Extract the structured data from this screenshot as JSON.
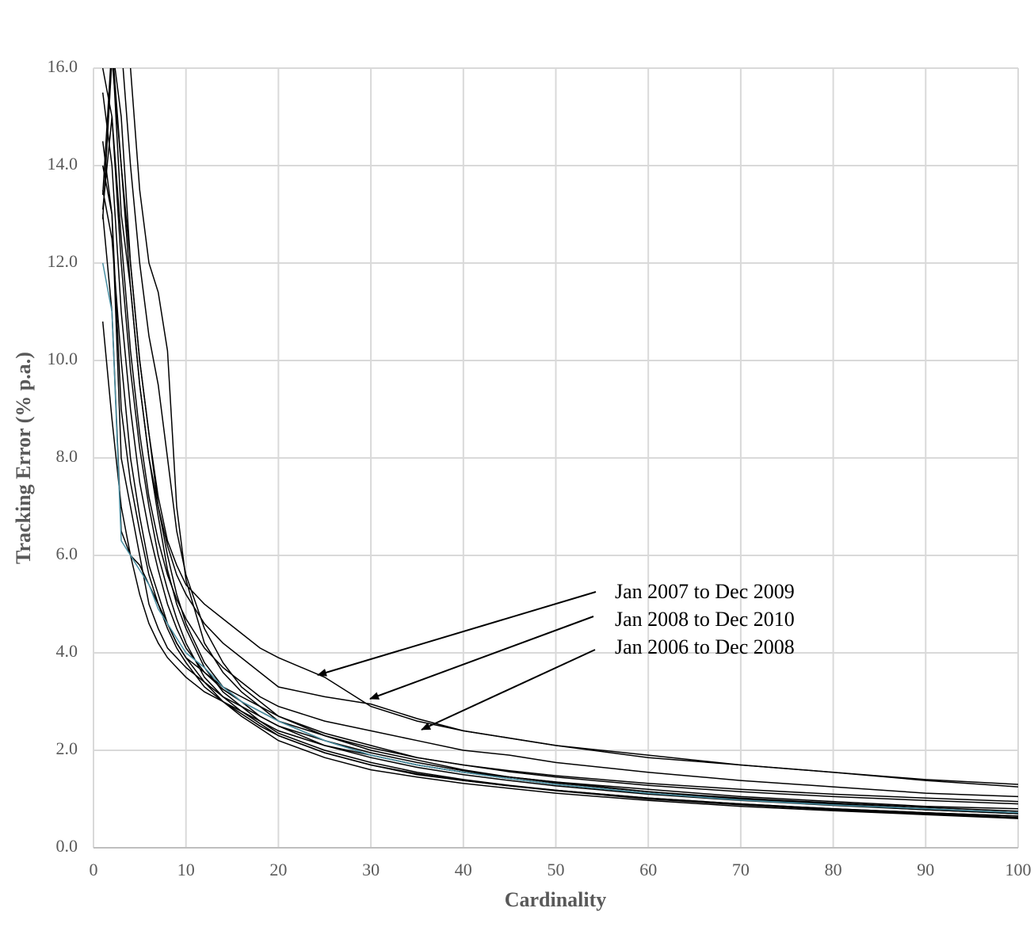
{
  "chart_data": {
    "type": "line",
    "x_label": "Cardinality",
    "y_label": "Tracking Error (% p.a.)",
    "x": [
      1,
      2,
      3,
      4,
      5,
      6,
      7,
      8,
      9,
      10,
      12,
      14,
      16,
      18,
      20,
      25,
      30,
      35,
      40,
      45,
      50,
      60,
      70,
      80,
      90,
      100
    ],
    "color": "#000000",
    "series": [
      {
        "values": [
          13.4,
          16.5,
          15.0,
          12.0,
          10.0,
          8.5,
          7.2,
          6.3,
          5.8,
          5.4,
          5.0,
          4.7,
          4.4,
          4.1,
          3.9,
          3.5,
          2.9,
          2.6,
          2.4,
          2.25,
          2.1,
          1.9,
          1.7,
          1.55,
          1.4,
          1.3
        ]
      },
      {
        "values": [
          12.9,
          16.2,
          14.0,
          11.5,
          9.5,
          8.0,
          7.0,
          6.2,
          5.6,
          5.2,
          4.6,
          4.2,
          3.9,
          3.6,
          3.3,
          3.1,
          2.95,
          2.65,
          2.4,
          2.25,
          2.1,
          1.85,
          1.7,
          1.55,
          1.38,
          1.25
        ]
      },
      {
        "values": [
          13.1,
          15.0,
          12.5,
          10.2,
          8.5,
          7.2,
          6.3,
          5.6,
          5.1,
          4.7,
          4.1,
          3.7,
          3.4,
          3.1,
          2.9,
          2.6,
          2.4,
          2.2,
          2.0,
          1.9,
          1.75,
          1.55,
          1.38,
          1.25,
          1.12,
          1.05
        ]
      },
      {
        "values": [
          10.8,
          8.8,
          7.0,
          6.0,
          5.2,
          4.6,
          4.2,
          3.9,
          3.7,
          3.5,
          3.2,
          3.0,
          2.8,
          2.6,
          2.4,
          2.1,
          1.9,
          1.7,
          1.55,
          1.45,
          1.35,
          1.2,
          1.05,
          0.95,
          0.85,
          0.8
        ]
      },
      {
        "values": [
          13.0,
          11.0,
          6.5,
          6.0,
          5.8,
          5.4,
          5.0,
          4.6,
          4.2,
          3.9,
          3.6,
          3.3,
          3.1,
          2.9,
          2.7,
          2.3,
          2.0,
          1.8,
          1.6,
          1.45,
          1.35,
          1.15,
          1.0,
          0.9,
          0.8,
          0.72
        ]
      },
      {
        "values": [
          14.0,
          13.0,
          8.0,
          7.0,
          6.0,
          5.0,
          4.5,
          4.1,
          3.9,
          3.7,
          3.4,
          3.1,
          2.9,
          2.7,
          2.5,
          2.2,
          1.9,
          1.7,
          1.55,
          1.42,
          1.3,
          1.12,
          0.98,
          0.88,
          0.78,
          0.7
        ]
      },
      {
        "values": [
          16.5,
          16.5,
          14.0,
          12.0,
          10.0,
          8.5,
          7.0,
          6.0,
          5.2,
          4.6,
          3.8,
          3.3,
          3.0,
          2.7,
          2.5,
          2.1,
          1.85,
          1.65,
          1.5,
          1.38,
          1.27,
          1.1,
          0.97,
          0.87,
          0.78,
          0.7
        ]
      },
      {
        "values": [
          17,
          17,
          17,
          16,
          13.5,
          12,
          11.4,
          10.2,
          7.0,
          5.5,
          4.2,
          3.6,
          3.2,
          2.9,
          2.6,
          2.2,
          1.95,
          1.75,
          1.58,
          1.45,
          1.33,
          1.15,
          1.02,
          0.92,
          0.83,
          0.75
        ]
      },
      {
        "values": [
          16.8,
          16.5,
          13.0,
          11.5,
          9.5,
          8.0,
          6.8,
          5.7,
          5.0,
          4.5,
          3.7,
          3.2,
          2.9,
          2.6,
          2.35,
          2.0,
          1.75,
          1.55,
          1.4,
          1.28,
          1.18,
          1.02,
          0.9,
          0.8,
          0.72,
          0.65
        ]
      },
      {
        "values": [
          16,
          15,
          12,
          9.8,
          8.2,
          7.0,
          6.0,
          5.3,
          4.7,
          4.2,
          3.5,
          3.1,
          2.8,
          2.55,
          2.3,
          1.95,
          1.7,
          1.5,
          1.38,
          1.27,
          1.17,
          1.0,
          0.88,
          0.78,
          0.7,
          0.62
        ]
      },
      {
        "values": [
          17,
          17,
          16.5,
          14,
          12,
          10.5,
          9.5,
          8.0,
          6.5,
          5.6,
          4.5,
          3.8,
          3.3,
          3.0,
          2.7,
          2.35,
          2.1,
          1.85,
          1.7,
          1.56,
          1.45,
          1.28,
          1.15,
          1.05,
          0.97,
          0.9
        ]
      },
      {
        "values": [
          14.5,
          13,
          9,
          7.5,
          6.5,
          5.6,
          5.0,
          4.5,
          4.1,
          3.8,
          3.3,
          3.0,
          2.75,
          2.5,
          2.3,
          1.95,
          1.7,
          1.52,
          1.38,
          1.27,
          1.18,
          1.02,
          0.9,
          0.8,
          0.72,
          0.65
        ]
      },
      {
        "values": [
          13.5,
          12.5,
          10,
          8,
          6.8,
          5.8,
          5.2,
          4.6,
          4.2,
          3.9,
          3.4,
          3.0,
          2.7,
          2.45,
          2.2,
          1.85,
          1.6,
          1.45,
          1.32,
          1.22,
          1.12,
          0.97,
          0.85,
          0.76,
          0.68,
          0.6
        ]
      },
      {
        "values": [
          15.5,
          14,
          11,
          9,
          7.5,
          6.5,
          5.7,
          5.0,
          4.5,
          4.1,
          3.6,
          3.25,
          3.0,
          2.8,
          2.6,
          2.3,
          2.05,
          1.85,
          1.7,
          1.58,
          1.48,
          1.32,
          1.2,
          1.1,
          1.02,
          0.95
        ]
      },
      {
        "color": "#4a90a4",
        "values": [
          12.0,
          11.0,
          6.3,
          6.0,
          5.7,
          5.4,
          4.9,
          4.6,
          4.3,
          4.0,
          3.7,
          3.3,
          3.0,
          2.8,
          2.6,
          2.2,
          1.9,
          1.7,
          1.55,
          1.42,
          1.3,
          1.12,
          0.98,
          0.88,
          0.8,
          0.72
        ]
      }
    ],
    "xlim": [
      0,
      100
    ],
    "xticks": [
      0,
      10,
      20,
      30,
      40,
      50,
      60,
      70,
      80,
      90,
      100
    ],
    "ylim": [
      0,
      16
    ],
    "yticks": [
      {
        "value": 0,
        "label": "0.0"
      },
      {
        "value": 2,
        "label": "2.0"
      },
      {
        "value": 4,
        "label": "4.0"
      },
      {
        "value": 6,
        "label": "6.0"
      },
      {
        "value": 8,
        "label": "8.0"
      },
      {
        "value": 10,
        "label": "10.0"
      },
      {
        "value": 12,
        "label": "12.0"
      },
      {
        "value": 14,
        "label": "14.0"
      },
      {
        "value": 16,
        "label": "16.0"
      }
    ],
    "grid": true,
    "annotations": [
      {
        "text": "Jan 2007 to Dec 2009"
      },
      {
        "text": "Jan 2008 to Dec 2010"
      },
      {
        "text": "Jan 2006 to Dec 2008"
      }
    ]
  }
}
